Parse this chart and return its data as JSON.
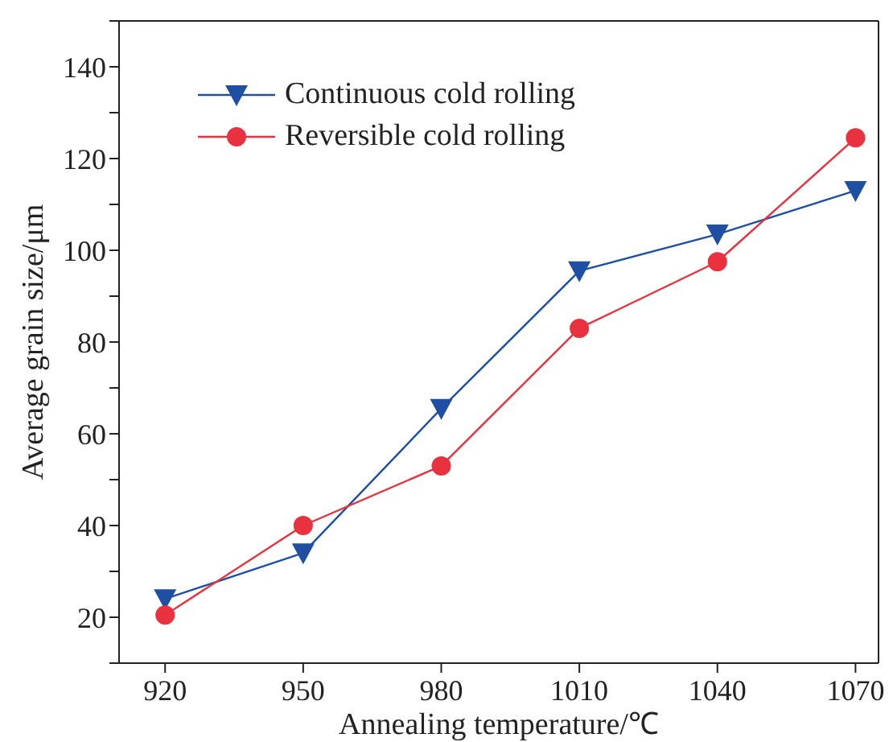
{
  "chart_data": {
    "type": "line",
    "xlabel": "Annealing temperature/℃",
    "ylabel": "Average grain size/μm",
    "x": [
      920,
      950,
      980,
      1010,
      1040,
      1070
    ],
    "series": [
      {
        "name": "Continuous cold rolling",
        "color": "#1f4fa3",
        "marker": "triangle",
        "values": [
          24,
          34,
          65.5,
          95.5,
          103.5,
          113
        ]
      },
      {
        "name": "Reversible cold rolling",
        "color": "#e8323f",
        "marker": "circle",
        "values": [
          20.5,
          40,
          53,
          83,
          97.5,
          124.5
        ]
      }
    ],
    "xlim": [
      910,
      1075
    ],
    "xticks": [
      920,
      950,
      980,
      1010,
      1040,
      1070
    ],
    "ylim": [
      10,
      150
    ],
    "yticks": [
      {
        "value": 10,
        "label": null
      },
      20,
      {
        "value": 30,
        "label": null
      },
      40,
      {
        "value": 50,
        "label": null
      },
      60,
      {
        "value": 70,
        "label": null
      },
      80,
      {
        "value": 90,
        "label": null
      },
      100,
      {
        "value": 110,
        "label": null
      },
      120,
      {
        "value": 130,
        "label": null
      },
      140,
      {
        "value": 150,
        "label": null
      }
    ],
    "grid": false,
    "legend": "top left",
    "line_style": "solid"
  }
}
